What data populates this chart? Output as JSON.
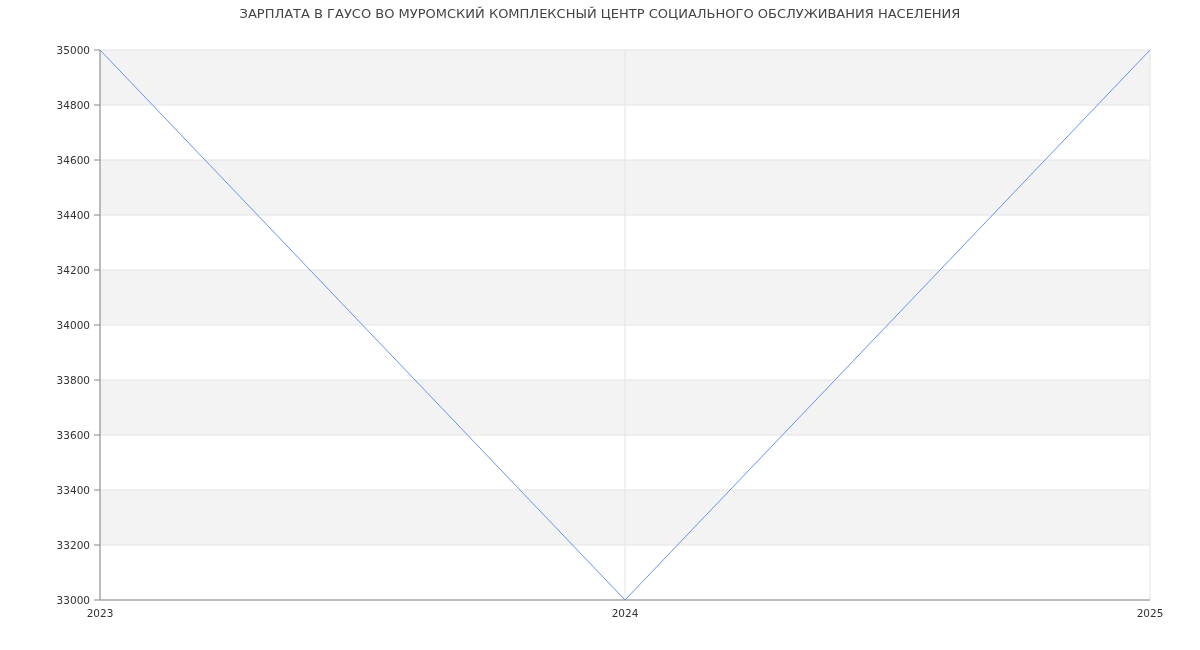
{
  "chart_data": {
    "type": "line",
    "title": "ЗАРПЛАТА В ГАУСО ВО МУРОМСКИЙ КОМПЛЕКСНЫЙ ЦЕНТР СОЦИАЛЬНОГО ОБСЛУЖИВАНИЯ НАСЕЛЕНИЯ",
    "x": [
      2023,
      2024,
      2025
    ],
    "series": [
      {
        "color": "#6495ed",
        "values": [
          35000,
          33000,
          35000
        ]
      }
    ],
    "xlim": [
      2023,
      2025
    ],
    "xticks": [
      2023,
      2024,
      2025
    ],
    "ylim": [
      33000,
      35000
    ],
    "yticks": [
      33000,
      33200,
      33400,
      33600,
      33800,
      34000,
      34200,
      34400,
      34600,
      34800,
      35000
    ],
    "grid": true,
    "marker": "none",
    "line_style": "solid"
  }
}
